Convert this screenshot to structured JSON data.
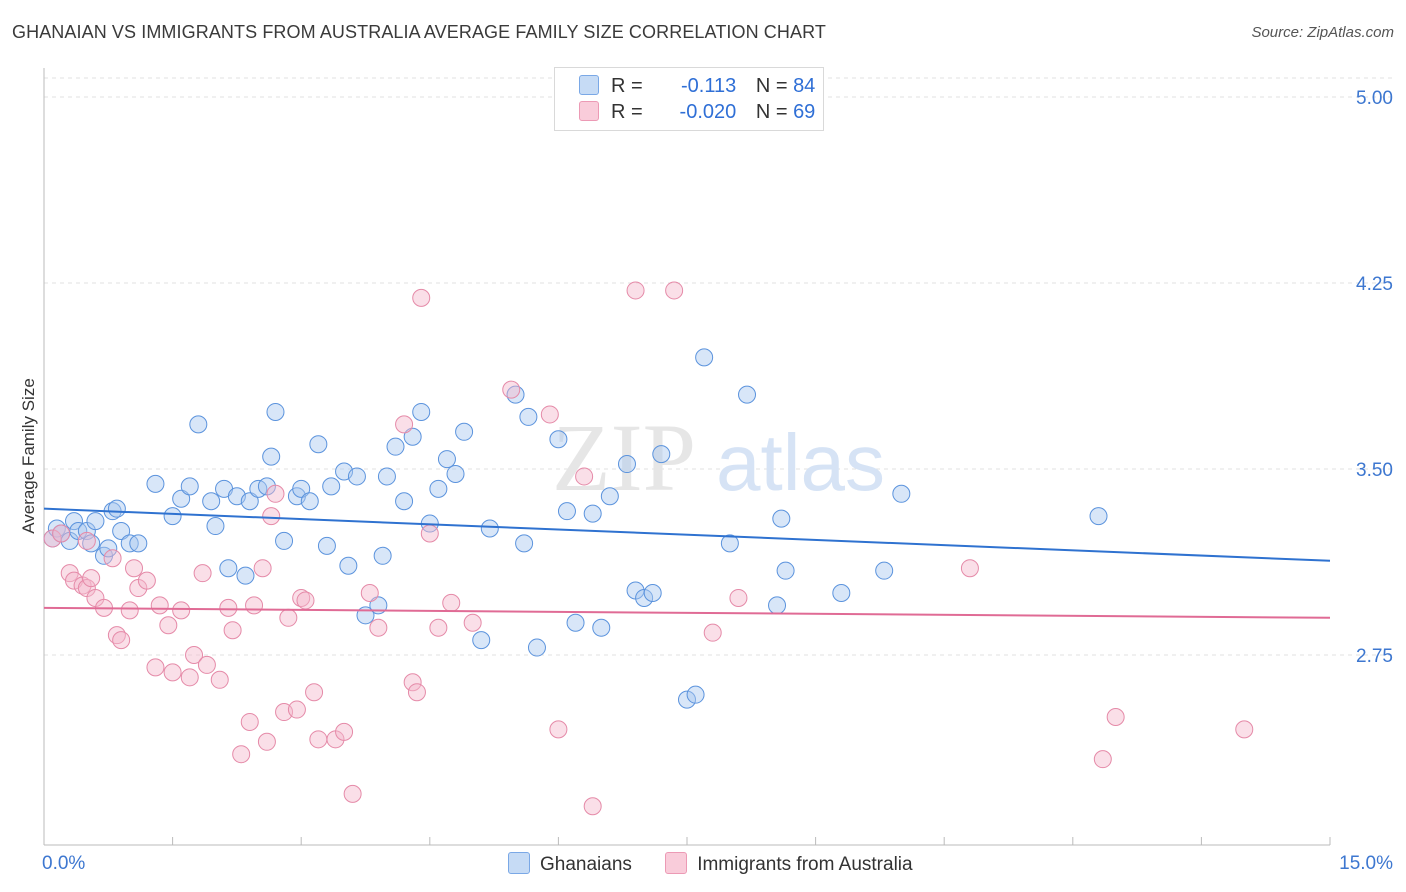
{
  "title": "GHANAIAN VS IMMIGRANTS FROM AUSTRALIA AVERAGE FAMILY SIZE CORRELATION CHART",
  "source": "Source: ZipAtlas.com",
  "watermark": {
    "zip": "ZIP",
    "atlas": "atlas"
  },
  "legend": {
    "rows": [
      {
        "r_label": "R =",
        "r_value": "-0.113",
        "n_label": "N =",
        "n_value": "84",
        "color": "#a8c8f0"
      },
      {
        "r_label": "R =",
        "r_value": "-0.020",
        "n_label": "N =",
        "n_value": "69",
        "color": "#f5b8cc"
      }
    ]
  },
  "bottom_legend": [
    {
      "label": "Ghanaians",
      "color": "#a8c8f0"
    },
    {
      "label": "Immigrants from Australia",
      "color": "#f5b8cc"
    }
  ],
  "chart_data": {
    "type": "scatter",
    "title": "GHANAIAN VS IMMIGRANTS FROM AUSTRALIA AVERAGE FAMILY SIZE CORRELATION CHART",
    "xlabel": "",
    "ylabel": "Average Family Size",
    "xlim": [
      0,
      15
    ],
    "ylim": [
      2.0,
      5.1
    ],
    "x_tick_labels": [
      "0.0%",
      "15.0%"
    ],
    "y_ticks": [
      2.75,
      3.5,
      4.25,
      5.0
    ],
    "y_tick_labels": [
      "2.75",
      "3.50",
      "4.25",
      "5.00"
    ],
    "grid": true,
    "legend_position": "top-center",
    "series": [
      {
        "name": "Ghanaians",
        "color": "#5b93dd",
        "fill": "#a8c8f0",
        "trend": {
          "x": [
            0,
            15
          ],
          "y": [
            3.34,
            3.13
          ],
          "color": "#2f72d0"
        },
        "points": [
          [
            0.1,
            3.22
          ],
          [
            0.15,
            3.26
          ],
          [
            0.2,
            3.24
          ],
          [
            0.3,
            3.21
          ],
          [
            0.35,
            3.29
          ],
          [
            0.4,
            3.25
          ],
          [
            0.5,
            3.25
          ],
          [
            0.55,
            3.2
          ],
          [
            0.6,
            3.29
          ],
          [
            0.7,
            3.15
          ],
          [
            0.75,
            3.18
          ],
          [
            0.8,
            3.33
          ],
          [
            0.85,
            3.34
          ],
          [
            0.9,
            3.25
          ],
          [
            1.0,
            3.2
          ],
          [
            1.1,
            3.2
          ],
          [
            1.3,
            3.44
          ],
          [
            1.5,
            3.31
          ],
          [
            1.6,
            3.38
          ],
          [
            1.7,
            3.43
          ],
          [
            1.8,
            3.68
          ],
          [
            1.95,
            3.37
          ],
          [
            2.0,
            3.27
          ],
          [
            2.1,
            3.42
          ],
          [
            2.15,
            3.1
          ],
          [
            2.25,
            3.39
          ],
          [
            2.35,
            3.07
          ],
          [
            2.4,
            3.37
          ],
          [
            2.5,
            3.42
          ],
          [
            2.6,
            3.43
          ],
          [
            2.65,
            3.55
          ],
          [
            2.7,
            3.73
          ],
          [
            2.8,
            3.21
          ],
          [
            2.95,
            3.39
          ],
          [
            3.0,
            3.42
          ],
          [
            3.1,
            3.37
          ],
          [
            3.2,
            3.6
          ],
          [
            3.3,
            3.19
          ],
          [
            3.35,
            3.43
          ],
          [
            3.5,
            3.49
          ],
          [
            3.55,
            3.11
          ],
          [
            3.65,
            3.47
          ],
          [
            3.75,
            2.91
          ],
          [
            3.9,
            2.95
          ],
          [
            3.95,
            3.15
          ],
          [
            4.0,
            3.47
          ],
          [
            4.1,
            3.59
          ],
          [
            4.2,
            3.37
          ],
          [
            4.3,
            3.63
          ],
          [
            4.4,
            3.73
          ],
          [
            4.5,
            3.28
          ],
          [
            4.6,
            3.42
          ],
          [
            4.7,
            3.54
          ],
          [
            4.8,
            3.48
          ],
          [
            4.9,
            3.65
          ],
          [
            5.1,
            2.81
          ],
          [
            5.2,
            3.26
          ],
          [
            5.5,
            3.8
          ],
          [
            5.6,
            3.2
          ],
          [
            5.65,
            3.71
          ],
          [
            5.75,
            2.78
          ],
          [
            6.0,
            3.62
          ],
          [
            6.1,
            3.33
          ],
          [
            6.2,
            2.88
          ],
          [
            6.4,
            3.32
          ],
          [
            6.5,
            2.86
          ],
          [
            6.6,
            3.39
          ],
          [
            6.8,
            3.52
          ],
          [
            6.9,
            3.01
          ],
          [
            7.0,
            2.98
          ],
          [
            7.1,
            3.0
          ],
          [
            7.2,
            3.56
          ],
          [
            7.5,
            2.57
          ],
          [
            7.6,
            2.59
          ],
          [
            7.7,
            3.95
          ],
          [
            8.0,
            3.2
          ],
          [
            8.2,
            3.8
          ],
          [
            8.55,
            2.95
          ],
          [
            8.6,
            3.3
          ],
          [
            8.65,
            3.09
          ],
          [
            9.3,
            3.0
          ],
          [
            9.8,
            3.09
          ],
          [
            12.3,
            3.31
          ],
          [
            10.0,
            3.4
          ]
        ]
      },
      {
        "name": "Immigrants from Australia",
        "color": "#e58aa8",
        "fill": "#f5b8cc",
        "trend": {
          "x": [
            0,
            15
          ],
          "y": [
            2.94,
            2.9
          ],
          "color": "#e06b95"
        },
        "points": [
          [
            0.1,
            3.22
          ],
          [
            0.2,
            3.24
          ],
          [
            0.3,
            3.08
          ],
          [
            0.35,
            3.05
          ],
          [
            0.45,
            3.03
          ],
          [
            0.5,
            3.02
          ],
          [
            0.55,
            3.06
          ],
          [
            0.6,
            2.98
          ],
          [
            0.7,
            2.94
          ],
          [
            0.8,
            3.14
          ],
          [
            0.85,
            2.83
          ],
          [
            0.9,
            2.81
          ],
          [
            1.0,
            2.93
          ],
          [
            1.05,
            3.1
          ],
          [
            1.1,
            3.02
          ],
          [
            1.2,
            3.05
          ],
          [
            1.3,
            2.7
          ],
          [
            1.35,
            2.95
          ],
          [
            1.45,
            2.87
          ],
          [
            1.5,
            2.68
          ],
          [
            1.6,
            2.93
          ],
          [
            1.7,
            2.66
          ],
          [
            1.75,
            2.75
          ],
          [
            1.85,
            3.08
          ],
          [
            1.9,
            2.71
          ],
          [
            2.05,
            2.65
          ],
          [
            2.15,
            2.94
          ],
          [
            2.2,
            2.85
          ],
          [
            2.3,
            2.35
          ],
          [
            2.4,
            2.48
          ],
          [
            2.45,
            2.95
          ],
          [
            2.55,
            3.1
          ],
          [
            2.6,
            2.4
          ],
          [
            2.65,
            3.31
          ],
          [
            2.7,
            3.4
          ],
          [
            2.8,
            2.52
          ],
          [
            2.85,
            2.9
          ],
          [
            2.95,
            2.53
          ],
          [
            3.0,
            2.98
          ],
          [
            3.05,
            2.97
          ],
          [
            3.15,
            2.6
          ],
          [
            3.2,
            2.41
          ],
          [
            3.4,
            2.41
          ],
          [
            3.5,
            2.44
          ],
          [
            3.6,
            2.19
          ],
          [
            3.8,
            3.0
          ],
          [
            3.9,
            2.86
          ],
          [
            4.2,
            3.68
          ],
          [
            4.3,
            2.64
          ],
          [
            4.35,
            2.6
          ],
          [
            4.4,
            4.19
          ],
          [
            4.5,
            3.24
          ],
          [
            4.6,
            2.86
          ],
          [
            4.75,
            2.96
          ],
          [
            5.0,
            2.88
          ],
          [
            5.45,
            3.82
          ],
          [
            5.9,
            3.72
          ],
          [
            6.0,
            2.45
          ],
          [
            6.3,
            3.47
          ],
          [
            6.4,
            2.14
          ],
          [
            6.9,
            4.22
          ],
          [
            7.35,
            4.22
          ],
          [
            7.8,
            2.84
          ],
          [
            8.1,
            2.98
          ],
          [
            10.8,
            3.1
          ],
          [
            12.35,
            2.33
          ],
          [
            12.5,
            2.5
          ],
          [
            14.0,
            2.45
          ],
          [
            0.5,
            3.21
          ]
        ]
      }
    ]
  }
}
